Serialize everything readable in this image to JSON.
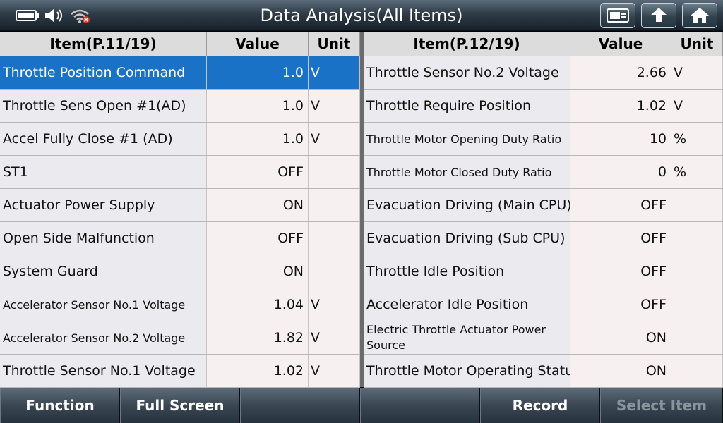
{
  "title": "Data Analysis(All Items)",
  "status_icons": [
    "battery-icon",
    "speaker-icon",
    "wifi-icon"
  ],
  "nav_buttons": [
    "screenshot-icon",
    "back-icon",
    "home-icon"
  ],
  "left_table": {
    "headers": {
      "item": "Item(P.11/19)",
      "value": "Value",
      "unit": "Unit"
    },
    "selected_index": 0,
    "rows": [
      {
        "item": "Throttle Position Command",
        "value": "1.0",
        "unit": "V"
      },
      {
        "item": "Throttle Sens Open #1(AD)",
        "value": "1.0",
        "unit": "V"
      },
      {
        "item": "Accel Fully Close #1 (AD)",
        "value": "1.0",
        "unit": "V"
      },
      {
        "item": "ST1",
        "value": "OFF",
        "unit": ""
      },
      {
        "item": "Actuator Power Supply",
        "value": "ON",
        "unit": ""
      },
      {
        "item": "Open Side Malfunction",
        "value": "OFF",
        "unit": ""
      },
      {
        "item": "System Guard",
        "value": "ON",
        "unit": ""
      },
      {
        "item": "Accelerator Sensor No.1 Voltage",
        "value": "1.04",
        "unit": "V"
      },
      {
        "item": "Accelerator Sensor No.2 Voltage",
        "value": "1.82",
        "unit": "V"
      },
      {
        "item": "Throttle Sensor No.1 Voltage",
        "value": "1.02",
        "unit": "V"
      }
    ]
  },
  "right_table": {
    "headers": {
      "item": "Item(P.12/19)",
      "value": "Value",
      "unit": "Unit"
    },
    "rows": [
      {
        "item": "Throttle Sensor No.2 Voltage",
        "value": "2.66",
        "unit": "V"
      },
      {
        "item": "Throttle Require Position",
        "value": "1.02",
        "unit": "V"
      },
      {
        "item": "Throttle Motor Opening Duty Ratio",
        "value": "10",
        "unit": "%"
      },
      {
        "item": "Throttle Motor Closed Duty Ratio",
        "value": "0",
        "unit": "%"
      },
      {
        "item": "Evacuation Driving (Main CPU)",
        "value": "OFF",
        "unit": ""
      },
      {
        "item": "Evacuation Driving (Sub CPU)",
        "value": "OFF",
        "unit": ""
      },
      {
        "item": "Throttle Idle Position",
        "value": "OFF",
        "unit": ""
      },
      {
        "item": "Accelerator Idle Position",
        "value": "OFF",
        "unit": ""
      },
      {
        "item": "Electric Throttle Actuator Power Source",
        "value": "ON",
        "unit": ""
      },
      {
        "item": "Throttle Motor Operating Status",
        "value": "ON",
        "unit": ""
      }
    ]
  },
  "bottom_buttons": [
    {
      "label": "Function",
      "enabled": true
    },
    {
      "label": "Full Screen",
      "enabled": true
    },
    {
      "label": "",
      "enabled": true
    },
    {
      "label": "",
      "enabled": true
    },
    {
      "label": "Record",
      "enabled": true
    },
    {
      "label": "Select Item",
      "enabled": false
    }
  ],
  "colors": {
    "selected_row": "#1a72c6",
    "titlebar": "#2f3c48"
  }
}
